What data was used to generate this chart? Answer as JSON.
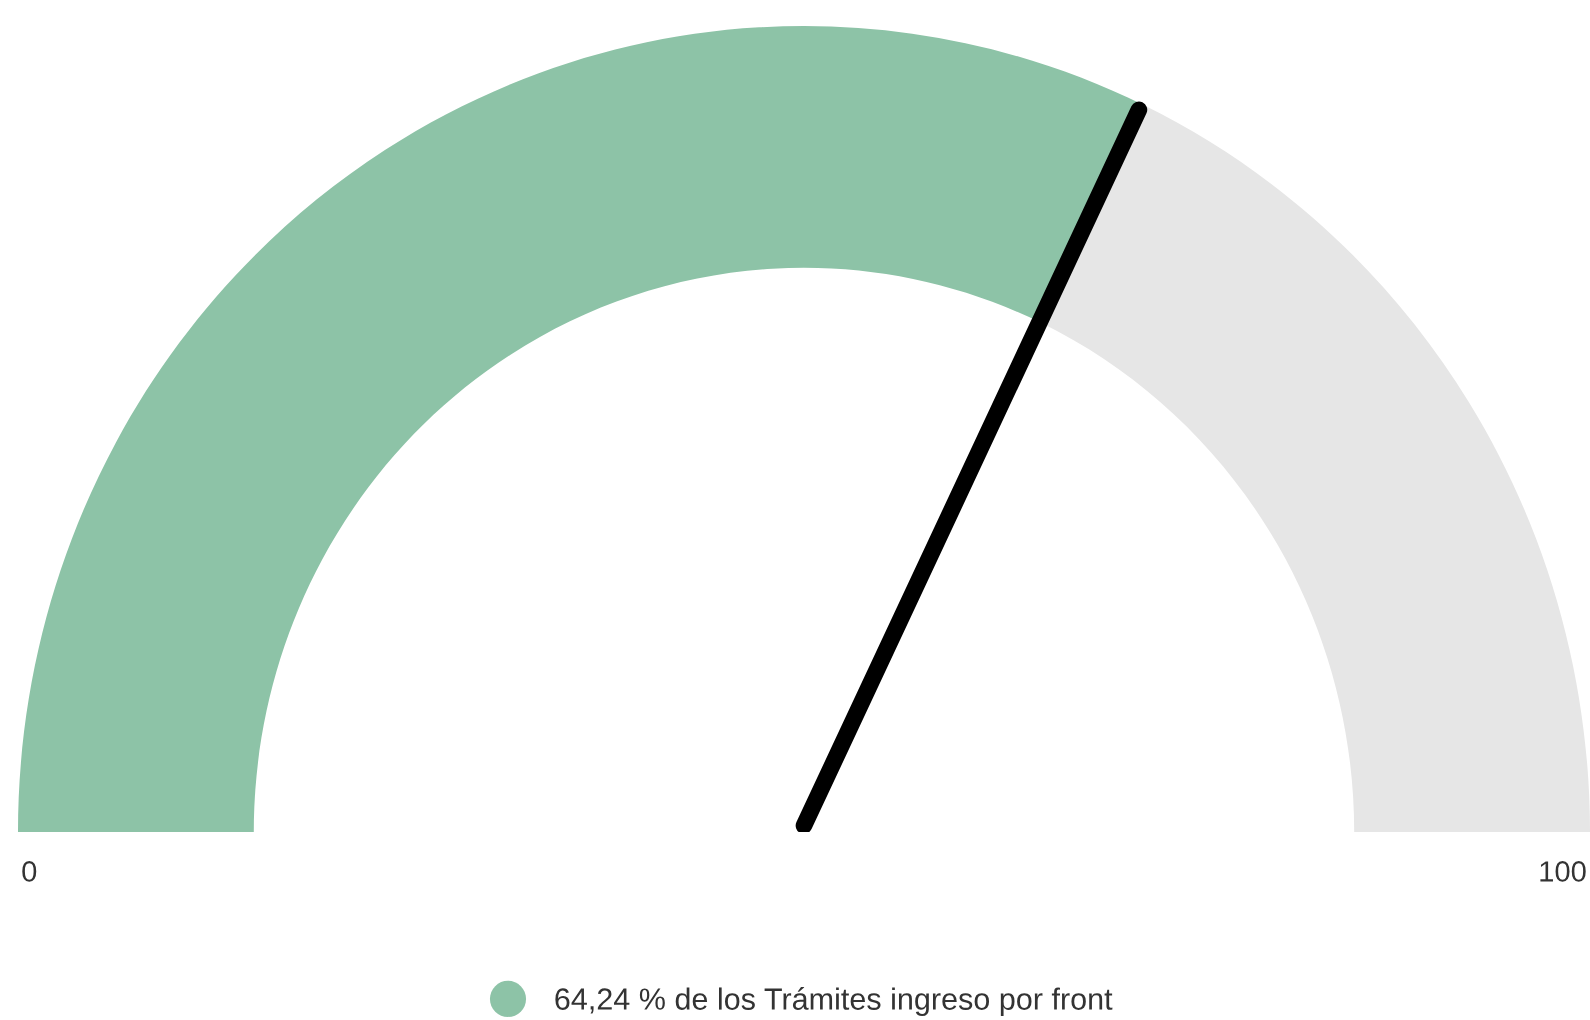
{
  "chart_data": {
    "type": "donut",
    "categories": [
      "64,24 % de los Trámites ingreso por front",
      null
    ],
    "values": [
      64.24,
      35.76
    ],
    "colors": [
      "#8dc3a7",
      "#e6e6e6"
    ],
    "needle": "64,24 % de los Trámites ingreso por front",
    "annotations": [
      "0",
      "100"
    ],
    "legend": "bottom"
  }
}
